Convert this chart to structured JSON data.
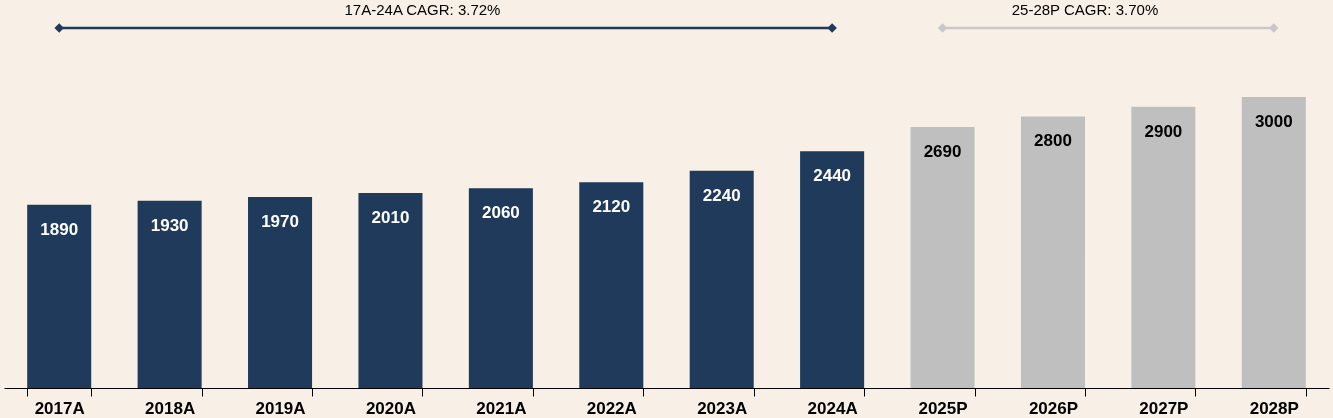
{
  "chart_data": {
    "type": "bar",
    "categories": [
      "2017A",
      "2018A",
      "2019A",
      "2020A",
      "2021A",
      "2022A",
      "2023A",
      "2024A",
      "2025P",
      "2026P",
      "2027P",
      "2028P"
    ],
    "values": [
      1890,
      1930,
      1970,
      2010,
      2060,
      2120,
      2240,
      2440,
      2690,
      2800,
      2900,
      3000
    ],
    "colors": [
      "#1f3a5a",
      "#1f3a5a",
      "#1f3a5a",
      "#1f3a5a",
      "#1f3a5a",
      "#1f3a5a",
      "#1f3a5a",
      "#1f3a5a",
      "#bfbfbf",
      "#bfbfbf",
      "#bfbfbf",
      "#bfbfbf"
    ],
    "data_labels": true,
    "tick_labels": "x",
    "annotations": [
      "17A-24A CAGR: 3.72%",
      "25-28P CAGR: 3.70%"
    ]
  }
}
